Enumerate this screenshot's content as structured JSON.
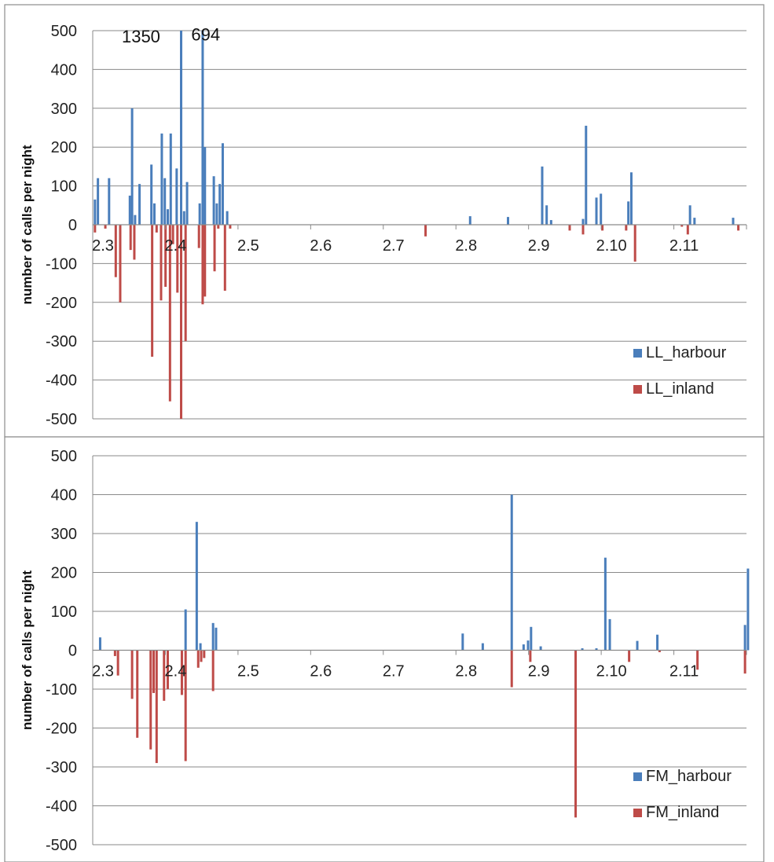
{
  "chart_data": [
    {
      "type": "bar",
      "title": "",
      "xlabel": "",
      "ylabel": "number of calls per night",
      "ylim": [
        -500,
        500
      ],
      "yticks": [
        500,
        400,
        300,
        200,
        100,
        0,
        -100,
        -200,
        -300,
        -400,
        -500
      ],
      "xtick_labels": [
        "2.3",
        "2.4",
        "2.5",
        "2.6",
        "2.7",
        "2.8",
        "2.9",
        "2.10",
        "2.11"
      ],
      "xlim": [
        0,
        88
      ],
      "grid": true,
      "legend_position": "bottom-right",
      "annotations": [
        {
          "text": "1350",
          "x": 6.5,
          "y": 470
        },
        {
          "text": "694",
          "x": 15.2,
          "y": 475
        }
      ],
      "series": [
        {
          "name": "LL_harbour",
          "color": "#4a7ebb",
          "x": [
            0.3,
            0.7,
            2.2,
            5.0,
            5.3,
            5.7,
            6.3,
            7.9,
            8.3,
            9.3,
            9.7,
            10.1,
            10.5,
            11.3,
            11.9,
            12.3,
            12.7,
            14.4,
            14.8,
            15.1,
            16.3,
            16.7,
            17.1,
            17.5,
            18.1,
            18.7,
            50.8,
            55.9,
            60.5,
            61.1,
            61.7,
            66.0,
            66.4,
            67.8,
            68.4,
            72.1,
            72.5,
            80.4,
            81.0,
            86.2
          ],
          "values": [
            65,
            120,
            120,
            75,
            300,
            25,
            105,
            155,
            55,
            235,
            120,
            40,
            235,
            145,
            500,
            35,
            110,
            55,
            500,
            200,
            125,
            55,
            105,
            210,
            35,
            0,
            22,
            20,
            150,
            50,
            12,
            15,
            255,
            70,
            80,
            60,
            135,
            50,
            18,
            18
          ]
        },
        {
          "name": "LL_inland",
          "color": "#be4b48",
          "x": [
            0.3,
            1.7,
            3.1,
            3.7,
            5.1,
            5.6,
            8.0,
            8.6,
            9.2,
            9.8,
            10.4,
            10.8,
            11.4,
            11.9,
            12.5,
            14.3,
            14.8,
            15.1,
            16.4,
            16.9,
            17.8,
            18.5,
            44.8,
            64.2,
            66.0,
            68.6,
            71.8,
            73.0,
            79.3,
            80.1,
            86.9
          ],
          "values": [
            -20,
            -10,
            -135,
            -200,
            -65,
            -90,
            -340,
            -20,
            -195,
            -160,
            -455,
            -50,
            -175,
            -500,
            -300,
            -60,
            -205,
            -185,
            -120,
            -10,
            -170,
            -10,
            -30,
            -15,
            -25,
            -15,
            -15,
            -95,
            -5,
            -25,
            -15
          ]
        }
      ]
    },
    {
      "type": "bar",
      "title": "",
      "xlabel": "",
      "ylabel": "number of calls per night",
      "ylim": [
        -500,
        500
      ],
      "yticks": [
        500,
        400,
        300,
        200,
        100,
        0,
        -100,
        -200,
        -300,
        -400,
        -500
      ],
      "xtick_labels": [
        "2.3",
        "2.4",
        "2.5",
        "2.6",
        "2.7",
        "2.8",
        "2.9",
        "2.10",
        "2.11"
      ],
      "xlim": [
        0,
        88
      ],
      "grid": true,
      "legend_position": "bottom-right",
      "series": [
        {
          "name": "FM_harbour",
          "color": "#4a7ebb",
          "x": [
            1.0,
            12.5,
            14.0,
            14.5,
            16.2,
            16.6,
            49.8,
            52.5,
            56.4,
            58.0,
            58.6,
            59.0,
            60.3,
            65.9,
            67.8,
            69.0,
            69.6,
            73.3,
            76.0,
            87.8,
            88.2
          ],
          "values": [
            33,
            105,
            330,
            18,
            70,
            58,
            43,
            18,
            400,
            15,
            25,
            60,
            10,
            5,
            5,
            238,
            80,
            24,
            40,
            65,
            210
          ]
        },
        {
          "name": "FM_inland",
          "color": "#be4b48",
          "x": [
            3.0,
            3.4,
            5.3,
            6.0,
            7.8,
            8.2,
            8.6,
            9.6,
            10.1,
            12.0,
            12.5,
            14.2,
            14.6,
            15.0,
            16.2,
            56.4,
            58.9,
            65.0,
            72.2,
            76.3,
            81.4,
            87.8
          ],
          "values": [
            -15,
            -65,
            -125,
            -225,
            -255,
            -110,
            -290,
            -130,
            -100,
            -115,
            -285,
            -45,
            -30,
            -20,
            -105,
            -95,
            -30,
            -430,
            -30,
            -5,
            -50,
            -60
          ]
        }
      ]
    }
  ]
}
